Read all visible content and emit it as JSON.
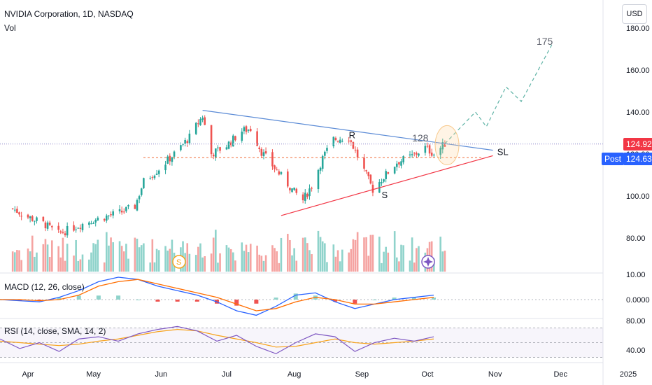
{
  "header": {
    "symbol_line": "NVIDIA Corporation, 1D, NASDAQ",
    "vol_label": "Vol",
    "currency_button": "USD"
  },
  "price_tags": {
    "last_value": "124.92",
    "post_label": "Post",
    "post_value": "124.63",
    "last_color": "#f23645",
    "post_color": "#2962ff"
  },
  "indicators": {
    "macd_label": "MACD (12, 26, close)",
    "rsi_label": "RSI (14, close, SMA, 14, 2)"
  },
  "colors": {
    "up": "#26a69a",
    "down": "#ef5350",
    "vol_up": "#8fd3cb",
    "vol_down": "#f5a3a1",
    "trendline_top": "#5b8bd6",
    "trendline_bottom": "#f23645",
    "macd_line": "#2962ff",
    "signal_line": "#ff6d00",
    "rsi_line": "#7e57c2",
    "rsi_ma": "#f7a21b",
    "projection": "#5fb3a6"
  },
  "chart_data": [
    {
      "type": "candlestick",
      "title": "NVIDIA Corporation, 1D, NASDAQ",
      "x_ticks": [
        "Apr",
        "May",
        "Jun",
        "Jul",
        "Aug",
        "Sep",
        "Oct",
        "Nov",
        "Dec",
        "2025"
      ],
      "y_ticks": [
        80,
        100,
        120,
        140,
        160,
        "180.00"
      ],
      "y_tick_labels": [
        "80.00",
        "100.00",
        "120.00",
        "140.00",
        "160.00",
        "180.00"
      ],
      "ylim": [
        63,
        192
      ],
      "grid": false,
      "price_path": [
        [
          "2024-03-25",
          94
        ],
        [
          "2024-04-01",
          90
        ],
        [
          "2024-04-08",
          87
        ],
        [
          "2024-04-15",
          82
        ],
        [
          "2024-04-22",
          85
        ],
        [
          "2024-04-29",
          88
        ],
        [
          "2024-05-06",
          90
        ],
        [
          "2024-05-13",
          92
        ],
        [
          "2024-05-20",
          95
        ],
        [
          "2024-05-24",
          107
        ],
        [
          "2024-05-31",
          113
        ],
        [
          "2024-06-07",
          120
        ],
        [
          "2024-06-14",
          128
        ],
        [
          "2024-06-18",
          135
        ],
        [
          "2024-06-20",
          138
        ],
        [
          "2024-06-24",
          120
        ],
        [
          "2024-07-01",
          124
        ],
        [
          "2024-07-08",
          131
        ],
        [
          "2024-07-12",
          132
        ],
        [
          "2024-07-17",
          121
        ],
        [
          "2024-07-24",
          112
        ],
        [
          "2024-07-31",
          103
        ],
        [
          "2024-08-05",
          98
        ],
        [
          "2024-08-09",
          105
        ],
        [
          "2024-08-14",
          118
        ],
        [
          "2024-08-19",
          127
        ],
        [
          "2024-08-26",
          128
        ],
        [
          "2024-08-30",
          119
        ],
        [
          "2024-09-06",
          103
        ],
        [
          "2024-09-10",
          108
        ],
        [
          "2024-09-17",
          116
        ],
        [
          "2024-09-24",
          119
        ],
        [
          "2024-09-30",
          123
        ],
        [
          "2024-10-04",
          120
        ],
        [
          "2024-10-09",
          124.92
        ]
      ],
      "last_price": 124.92,
      "post_market_price": 124.63,
      "annotations": [
        {
          "text": "R",
          "price": 127.5
        },
        {
          "text": "S",
          "price": 99
        },
        {
          "text": "128",
          "price": 126
        },
        {
          "text": "SL",
          "price": 119.5
        },
        {
          "text": "175",
          "price": 172
        }
      ],
      "levels": [
        {
          "name": "dashed support",
          "price": 118.3
        },
        {
          "name": "last price line",
          "price": 124.92
        }
      ],
      "trendlines": [
        {
          "name": "upper descending",
          "from": [
            "2024-06-20",
            140.8
          ],
          "to": [
            "2024-10-31",
            121.8
          ]
        },
        {
          "name": "lower ascending",
          "from": [
            "2024-07-26",
            90.7
          ],
          "to": [
            "2024-10-31",
            119.2
          ]
        }
      ],
      "projection_path": [
        [
          "2024-10-09",
          124.9
        ],
        [
          "2024-10-23",
          140
        ],
        [
          "2024-10-28",
          133
        ],
        [
          "2024-11-06",
          152
        ],
        [
          "2024-11-13",
          145
        ],
        [
          "2024-11-27",
          172
        ]
      ]
    },
    {
      "type": "line",
      "title": "MACD (12, 26, close)",
      "y_tick_labels": [
        "10.00",
        "0.0000"
      ],
      "series": [
        {
          "name": "MACD",
          "values": [
            0,
            -0.5,
            -1,
            1,
            4,
            8,
            10,
            9,
            6,
            4,
            2,
            -1,
            -5,
            -7,
            -3,
            2,
            3,
            -1,
            -4,
            -2,
            0,
            1,
            2
          ]
        },
        {
          "name": "Signal",
          "values": [
            0,
            0,
            -0.5,
            0,
            2,
            6,
            8,
            9,
            7,
            5,
            3,
            1,
            -2,
            -5,
            -4,
            -1,
            1,
            0,
            -2,
            -2,
            -1,
            0,
            1
          ]
        }
      ]
    },
    {
      "type": "line",
      "title": "RSI (14, close, SMA, 14, 2)",
      "y_tick_labels": [
        "80.00",
        "40.00"
      ],
      "levels": [
        70,
        50,
        30
      ],
      "series": [
        {
          "name": "RSI",
          "values": [
            55,
            42,
            50,
            38,
            55,
            58,
            52,
            62,
            68,
            72,
            66,
            52,
            60,
            45,
            35,
            50,
            62,
            58,
            38,
            50,
            56,
            52,
            58
          ]
        },
        {
          "name": "RSI-based MA",
          "values": [
            52,
            50,
            48,
            46,
            48,
            52,
            55,
            60,
            65,
            68,
            66,
            60,
            55,
            50,
            44,
            45,
            50,
            55,
            50,
            48,
            50,
            52,
            55
          ]
        }
      ]
    }
  ]
}
